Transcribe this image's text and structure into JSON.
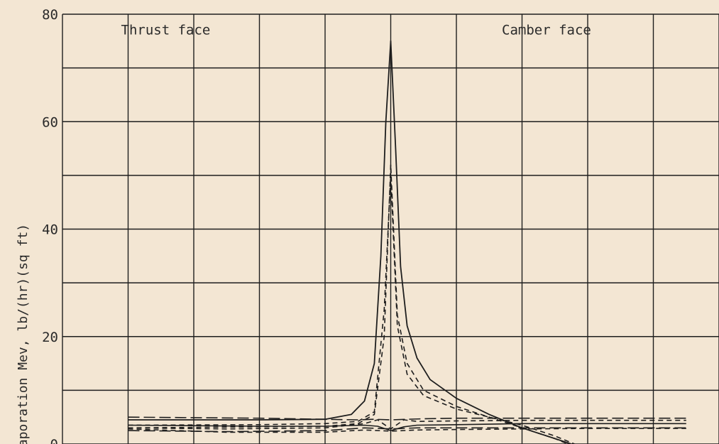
{
  "chart_data": {
    "type": "line",
    "title": "",
    "xlabel": "",
    "ylabel": "vaporation Mev, lb/(hr)(sq ft)",
    "ylim": [
      0,
      80
    ],
    "xlim": [
      -1,
      1
    ],
    "y_ticks": [
      0,
      20,
      40,
      60,
      80
    ],
    "y_tick_labels": [
      "0",
      "20",
      "40",
      "60",
      "80"
    ],
    "grid": true,
    "grid_step_y": 10,
    "grid_x": [
      -0.8,
      -0.6,
      -0.4,
      -0.2,
      0,
      0.2,
      0.4,
      0.6,
      0.8,
      1.0
    ],
    "annotations": [
      {
        "text": "Thrust face",
        "x": -0.8,
        "y": 77
      },
      {
        "text": "Camber face",
        "x": 0.36,
        "y": 77
      }
    ],
    "series": [
      {
        "style": "solid",
        "x": [
          -0.8,
          -0.4,
          -0.2,
          -0.12,
          -0.08,
          -0.05,
          -0.03,
          -0.015,
          0,
          0.015,
          0.03,
          0.05,
          0.08,
          0.12,
          0.2,
          0.3,
          0.4,
          0.5,
          0.6,
          0.7
        ],
        "y": [
          4.5,
          4.5,
          4.6,
          5.5,
          8,
          15,
          35,
          60,
          75,
          55,
          33,
          22,
          16,
          12,
          8.5,
          5.5,
          3,
          1,
          -1,
          -3
        ]
      },
      {
        "style": "dashed",
        "x": [
          -0.8,
          -0.4,
          -0.2,
          -0.1,
          -0.05,
          -0.02,
          0,
          0.02,
          0.05,
          0.1,
          0.2,
          0.3,
          0.4,
          0.5,
          0.6,
          0.7
        ],
        "y": [
          3,
          3.2,
          3.3,
          3.8,
          5.5,
          20,
          52,
          24,
          15,
          10,
          7,
          5,
          3,
          1,
          -1.5,
          -3
        ]
      },
      {
        "style": "dashed",
        "x": [
          -0.8,
          -0.4,
          -0.2,
          -0.1,
          -0.05,
          -0.02,
          0,
          0.02,
          0.05,
          0.1,
          0.2,
          0.3,
          0.4,
          0.5,
          0.6,
          0.7
        ],
        "y": [
          3.5,
          3.6,
          3.8,
          4.2,
          6,
          25,
          50,
          22,
          13,
          9,
          6.5,
          5,
          3.5,
          1.5,
          -1,
          -3
        ]
      },
      {
        "style": "long-dash",
        "x": [
          -0.8,
          -0.4,
          -0.1,
          -0.05,
          0,
          0.05,
          0.1,
          0.2,
          0.4,
          0.6,
          0.8,
          0.9
        ],
        "y": [
          5,
          4.8,
          4.5,
          4.6,
          4.5,
          4.6,
          4.7,
          4.8,
          4.8,
          4.8,
          4.8,
          4.8
        ]
      },
      {
        "style": "dashed",
        "x": [
          -0.8,
          -0.5,
          -0.2,
          -0.08,
          -0.04,
          0,
          0.04,
          0.08,
          0.2,
          0.4,
          0.6,
          0.8,
          0.9
        ],
        "y": [
          3,
          2.8,
          3,
          3.8,
          4.5,
          2.8,
          4.5,
          4.2,
          4.3,
          4.4,
          4.4,
          4.4,
          4.4
        ]
      },
      {
        "style": "solid",
        "x": [
          -0.8,
          -0.4,
          -0.2,
          -0.08,
          -0.04,
          0,
          0.04,
          0.08,
          0.2,
          0.4,
          0.6,
          0.8,
          0.9
        ],
        "y": [
          3.5,
          3.3,
          3.3,
          3.5,
          3.3,
          2.5,
          3.2,
          3.5,
          3.6,
          3.8,
          3.8,
          3.8,
          3.8
        ]
      },
      {
        "style": "long-dash",
        "x": [
          -0.8,
          -0.5,
          -0.2,
          -0.08,
          0,
          0.08,
          0.2,
          0.4,
          0.6,
          0.8,
          0.9
        ],
        "y": [
          2.5,
          2.3,
          2.5,
          3,
          2.8,
          3,
          3,
          3,
          3,
          3,
          3
        ]
      },
      {
        "style": "dashed",
        "x": [
          -0.8,
          -0.5,
          -0.2,
          -0.08,
          0,
          0.08,
          0.2,
          0.4,
          0.6,
          0.8,
          0.9
        ],
        "y": [
          2.8,
          2.2,
          2.2,
          2.6,
          2.4,
          2.6,
          2.7,
          2.8,
          2.9,
          2.9,
          2.9
        ]
      }
    ],
    "colors": {
      "background": "#f3e6d3",
      "ink": "#1e1e1e"
    }
  }
}
